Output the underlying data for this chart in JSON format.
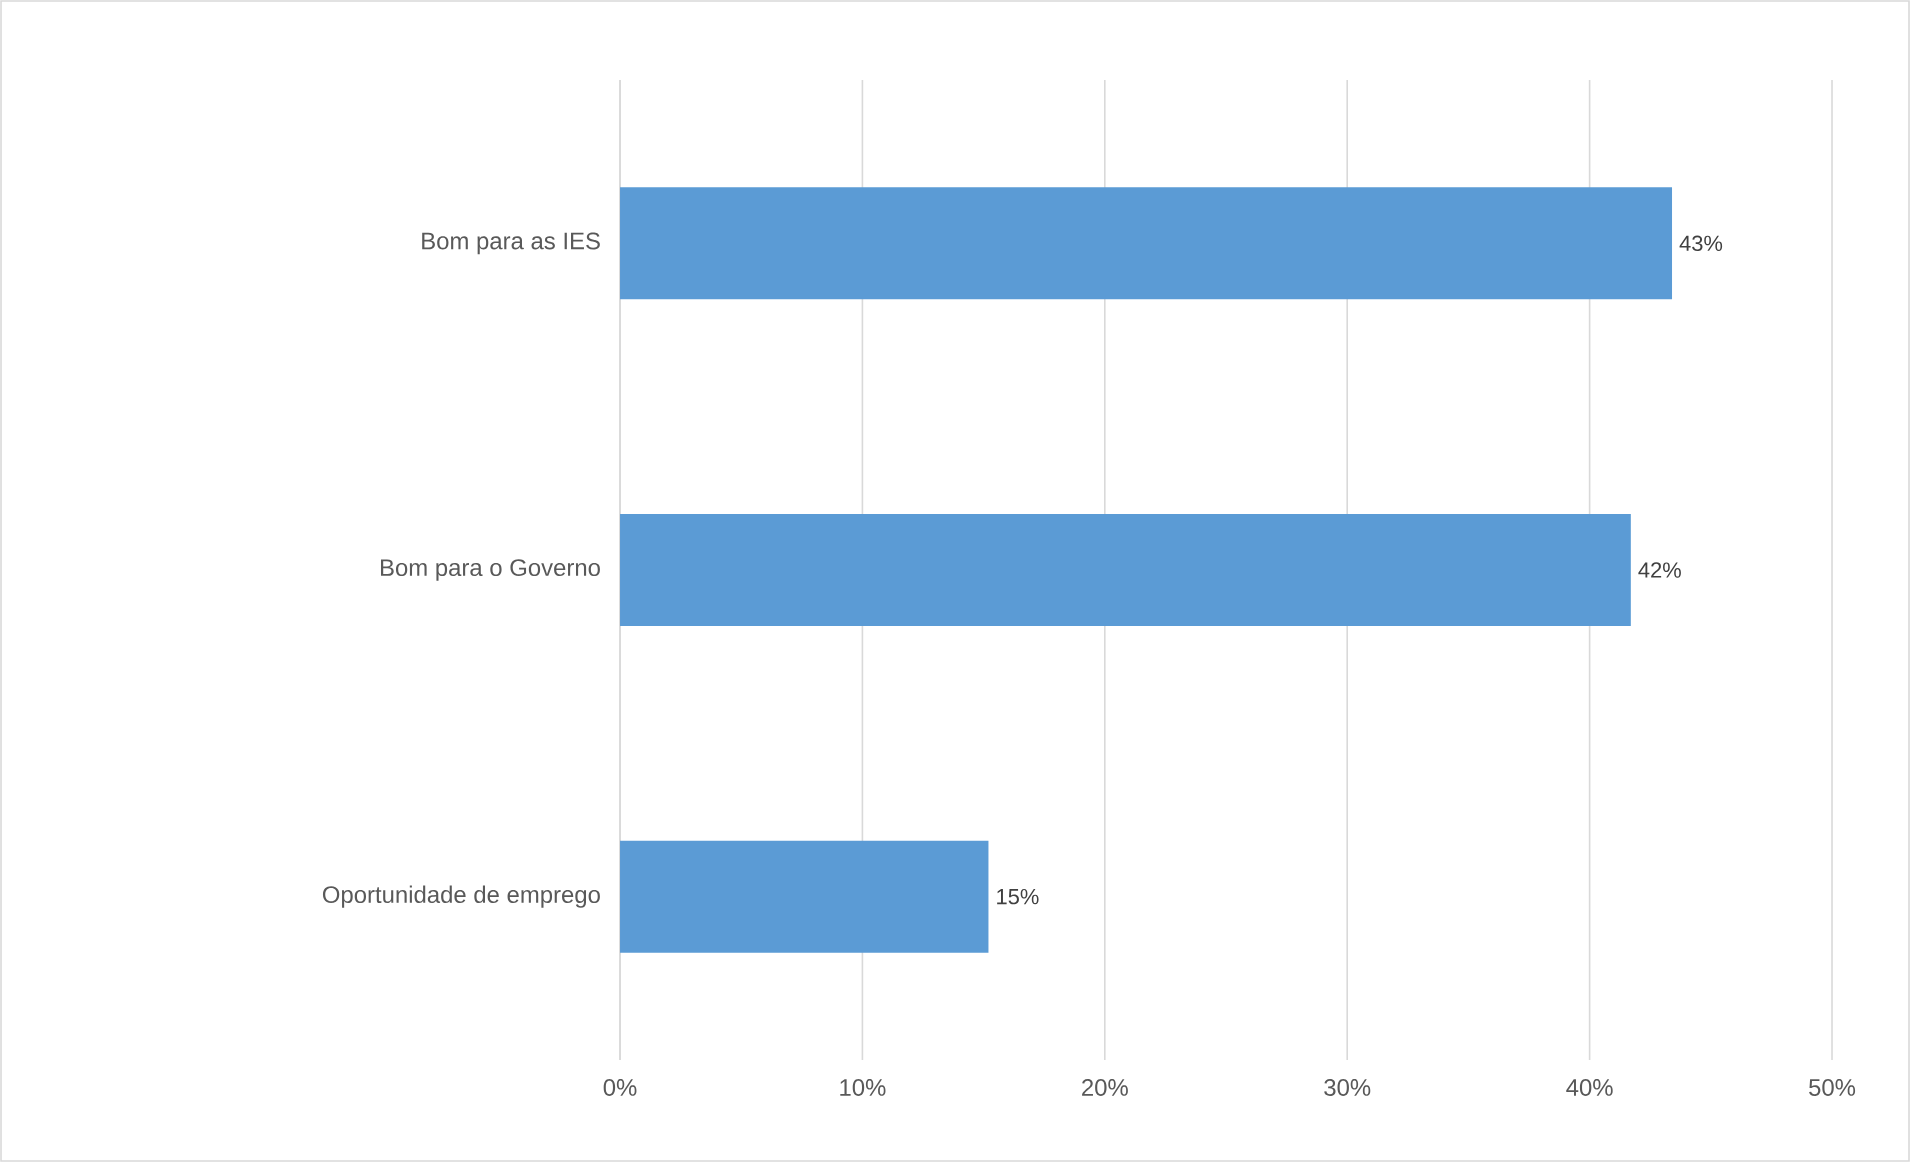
{
  "chart_data": {
    "type": "bar",
    "orientation": "horizontal",
    "categories": [
      "Bom para as IES",
      "Bom para o Governo",
      "Oportunidade de emprego"
    ],
    "values": [
      43.4,
      41.7,
      15.2
    ],
    "value_labels": [
      "43%",
      "42%",
      "15%"
    ],
    "color": "#5b9bd5",
    "xlim": [
      0,
      50
    ],
    "xticks": [
      {
        "value": 0,
        "label": "0%"
      },
      {
        "value": 10,
        "label": "10%"
      },
      {
        "value": 20,
        "label": "20%"
      },
      {
        "value": 30,
        "label": "30%"
      },
      {
        "value": 40,
        "label": "40%"
      },
      {
        "value": 50,
        "label": "50%"
      }
    ],
    "grid": "x",
    "legend": false
  }
}
